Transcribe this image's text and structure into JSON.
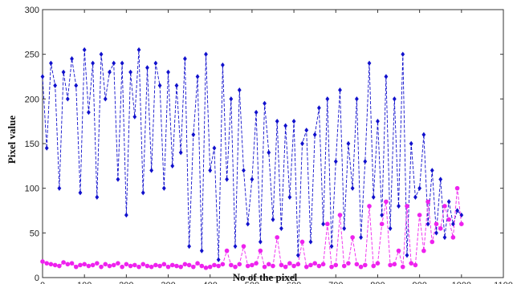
{
  "chart_data": {
    "type": "scatter",
    "title": "",
    "xlabel": "No of the pixel",
    "ylabel": "Pixel value",
    "xlim": [
      0,
      1100
    ],
    "ylim": [
      0,
      300
    ],
    "xticks": [
      0,
      100,
      200,
      300,
      400,
      500,
      600,
      700,
      800,
      900,
      1000,
      1100
    ],
    "yticks": [
      0,
      50,
      100,
      150,
      200,
      250,
      300
    ],
    "grid": false,
    "legend": "none",
    "series": [
      {
        "color": "#1010cc",
        "marker": "diamond",
        "line": "dashed",
        "x": [
          0,
          10,
          20,
          30,
          40,
          50,
          60,
          70,
          80,
          90,
          100,
          110,
          120,
          130,
          140,
          150,
          160,
          170,
          180,
          190,
          200,
          210,
          220,
          230,
          240,
          250,
          260,
          270,
          280,
          290,
          300,
          310,
          320,
          330,
          340,
          350,
          360,
          370,
          380,
          390,
          400,
          410,
          420,
          430,
          440,
          450,
          460,
          470,
          480,
          490,
          500,
          510,
          520,
          530,
          540,
          550,
          560,
          570,
          580,
          590,
          600,
          610,
          620,
          630,
          640,
          650,
          660,
          670,
          680,
          690,
          700,
          710,
          720,
          730,
          740,
          750,
          760,
          770,
          780,
          790,
          800,
          810,
          820,
          830,
          840,
          850,
          860,
          870,
          880,
          890,
          900,
          910,
          920,
          930,
          940,
          950,
          960,
          970,
          980,
          990,
          1000
        ],
        "y": [
          225,
          145,
          240,
          215,
          100,
          230,
          200,
          245,
          215,
          95,
          255,
          185,
          240,
          90,
          250,
          200,
          230,
          240,
          110,
          240,
          70,
          230,
          180,
          255,
          95,
          235,
          120,
          240,
          215,
          100,
          230,
          125,
          215,
          140,
          245,
          35,
          160,
          225,
          30,
          250,
          120,
          145,
          20,
          238,
          110,
          200,
          35,
          210,
          120,
          60,
          110,
          185,
          40,
          195,
          140,
          65,
          175,
          55,
          170,
          90,
          175,
          25,
          150,
          165,
          40,
          160,
          190,
          60,
          200,
          35,
          130,
          210,
          55,
          150,
          100,
          200,
          45,
          130,
          240,
          90,
          175,
          70,
          225,
          55,
          200,
          80,
          250,
          25,
          150,
          90,
          100,
          160,
          60,
          120,
          50,
          110,
          45,
          85,
          60,
          75,
          70
        ]
      },
      {
        "color": "#ee22ee",
        "marker": "circle",
        "line": "dashed",
        "x": [
          0,
          10,
          20,
          30,
          40,
          50,
          60,
          70,
          80,
          90,
          100,
          110,
          120,
          130,
          140,
          150,
          160,
          170,
          180,
          190,
          200,
          210,
          220,
          230,
          240,
          250,
          260,
          270,
          280,
          290,
          300,
          310,
          320,
          330,
          340,
          350,
          360,
          370,
          380,
          390,
          400,
          410,
          420,
          430,
          440,
          450,
          460,
          470,
          480,
          490,
          500,
          510,
          520,
          530,
          540,
          550,
          560,
          570,
          580,
          590,
          600,
          610,
          620,
          630,
          640,
          650,
          660,
          670,
          680,
          690,
          700,
          710,
          720,
          730,
          740,
          750,
          760,
          770,
          780,
          790,
          800,
          810,
          820,
          830,
          840,
          850,
          860,
          870,
          880,
          890,
          900,
          910,
          920,
          930,
          940,
          950,
          960,
          970,
          980,
          990,
          1000
        ],
        "y": [
          18,
          16,
          15,
          14,
          13,
          17,
          15,
          16,
          12,
          14,
          15,
          13,
          14,
          16,
          12,
          15,
          13,
          14,
          16,
          12,
          15,
          13,
          14,
          12,
          15,
          13,
          12,
          14,
          13,
          15,
          12,
          14,
          13,
          12,
          15,
          14,
          12,
          16,
          13,
          11,
          12,
          14,
          13,
          15,
          30,
          14,
          12,
          15,
          35,
          13,
          14,
          16,
          30,
          12,
          15,
          13,
          45,
          14,
          12,
          16,
          13,
          15,
          40,
          12,
          14,
          16,
          13,
          15,
          60,
          12,
          14,
          70,
          13,
          16,
          45,
          15,
          12,
          14,
          80,
          13,
          16,
          60,
          85,
          14,
          15,
          30,
          12,
          80,
          16,
          14,
          70,
          30,
          85,
          40,
          60,
          55,
          80,
          65,
          45,
          100,
          60
        ]
      }
    ]
  }
}
